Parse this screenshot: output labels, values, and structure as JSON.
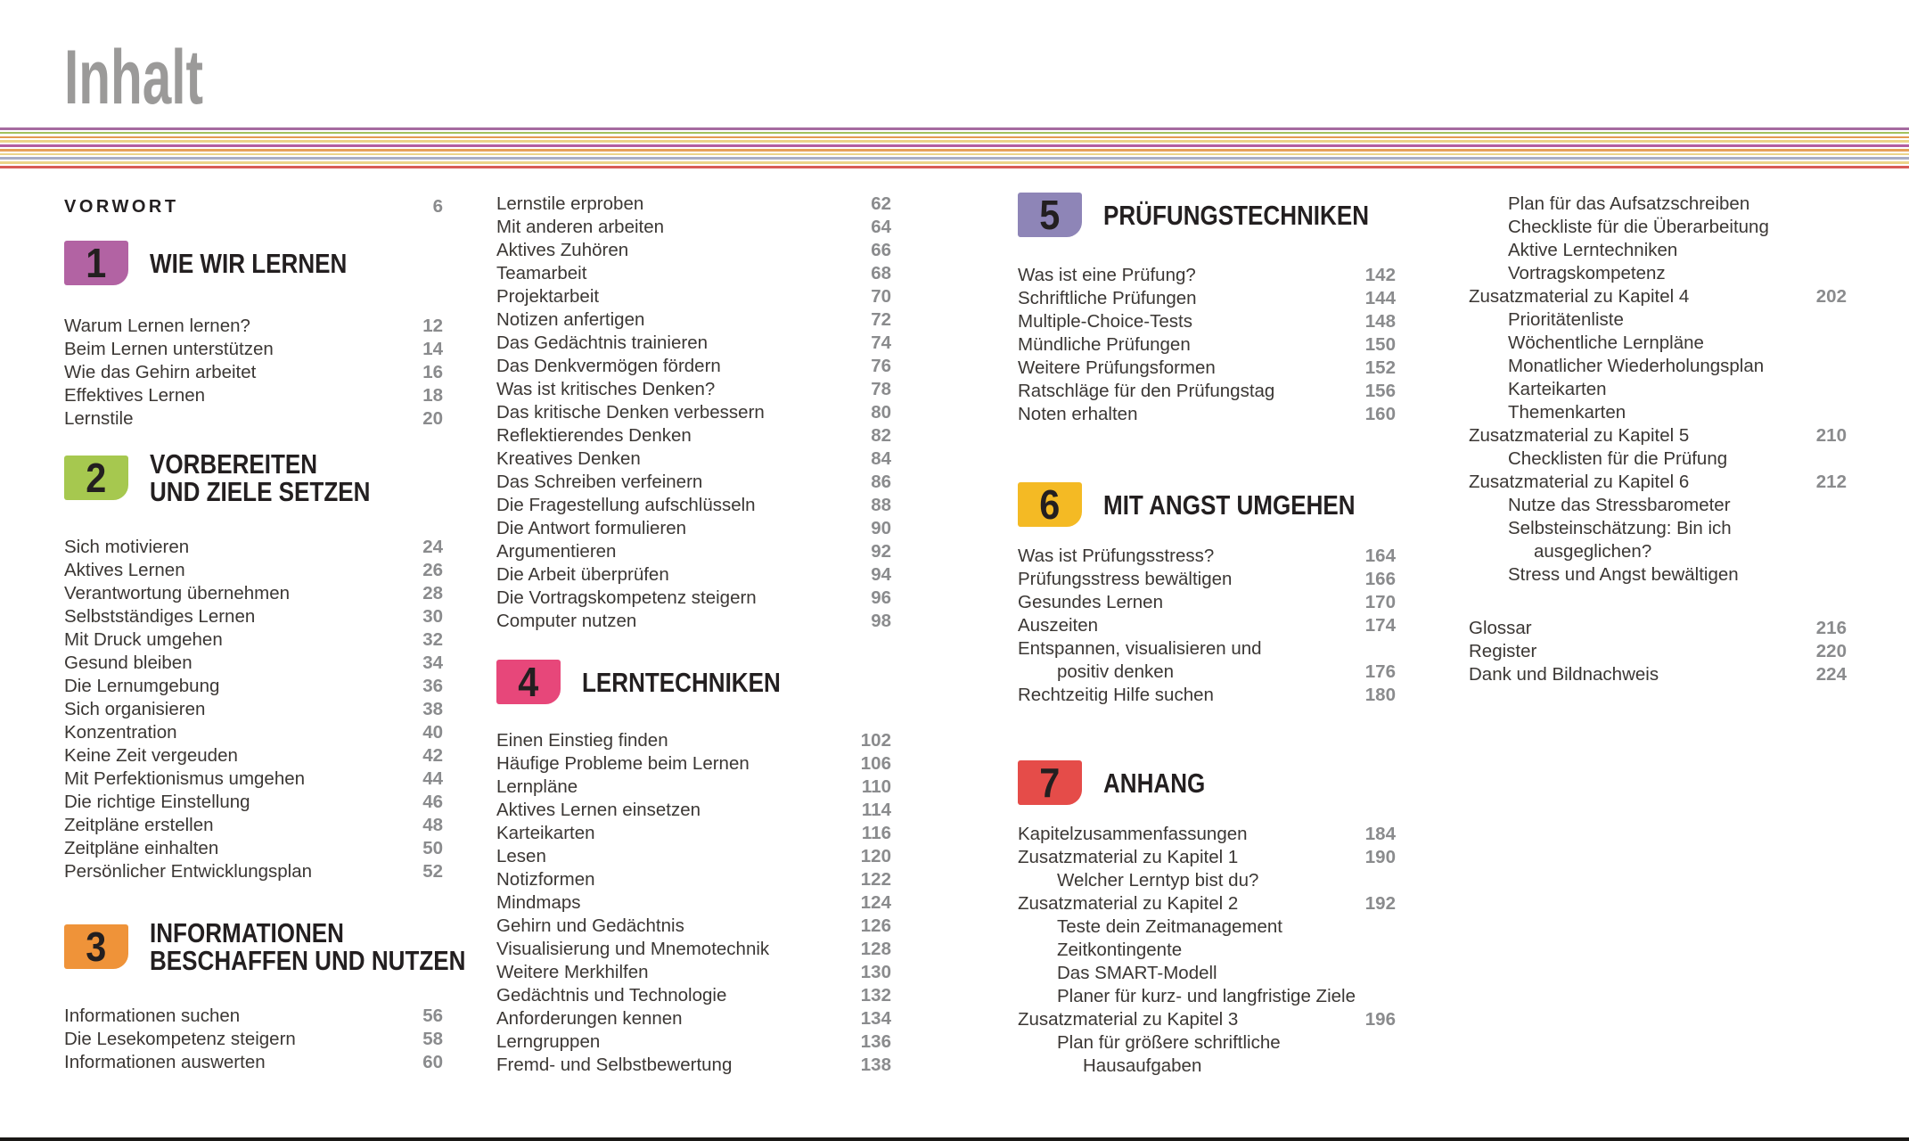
{
  "page": {
    "title": "Inhalt",
    "title_color": "#9b9a99",
    "text_color": "#3b3734",
    "heading_color": "#231f20",
    "page_number_color": "#8a8b8d",
    "stripe_colors": [
      "#a56ba0",
      "#a2c25e",
      "#e39a50",
      "#ecd489",
      "#b25da0",
      "#e5a05a",
      "#ecd489",
      "#a9adc4",
      "#ecd489",
      "#d85c56"
    ]
  },
  "columns": [
    {
      "blocks": [
        {
          "type": "entries",
          "name": "vorwort-entries",
          "variant": "vorwort",
          "entries": [
            {
              "label": "VORWORT",
              "page": "6"
            }
          ]
        },
        {
          "type": "chapter",
          "name": "chapter-1-header",
          "number": "1",
          "badge_color": "#b263a3",
          "title_lines": [
            "WIE WIR LERNEN"
          ]
        },
        {
          "type": "entries",
          "name": "chapter-1-entries",
          "entries": [
            {
              "label": "Warum Lernen lernen?",
              "page": "12"
            },
            {
              "label": "Beim Lernen unterstützen",
              "page": "14"
            },
            {
              "label": "Wie das Gehirn arbeitet",
              "page": "16"
            },
            {
              "label": "Effektives Lernen",
              "page": "18"
            },
            {
              "label": "Lernstile",
              "page": "20"
            }
          ]
        },
        {
          "type": "chapter",
          "name": "chapter-2-header",
          "number": "2",
          "badge_color": "#a6c84f",
          "title_lines": [
            "VORBEREITEN",
            "UND ZIELE SETZEN"
          ]
        },
        {
          "type": "entries",
          "name": "chapter-2-entries",
          "entries": [
            {
              "label": "Sich motivieren",
              "page": "24"
            },
            {
              "label": "Aktives Lernen",
              "page": "26"
            },
            {
              "label": "Verantwortung übernehmen",
              "page": "28"
            },
            {
              "label": "Selbstständiges Lernen",
              "page": "30"
            },
            {
              "label": "Mit Druck umgehen",
              "page": "32"
            },
            {
              "label": "Gesund bleiben",
              "page": "34"
            },
            {
              "label": "Die Lernumgebung",
              "page": "36"
            },
            {
              "label": "Sich organisieren",
              "page": "38"
            },
            {
              "label": "Konzentration",
              "page": "40"
            },
            {
              "label": "Keine Zeit vergeuden",
              "page": "42"
            },
            {
              "label": "Mit Perfektionismus umgehen",
              "page": "44"
            },
            {
              "label": "Die richtige Einstellung",
              "page": "46"
            },
            {
              "label": "Zeitpläne erstellen",
              "page": "48"
            },
            {
              "label": "Zeitpläne einhalten",
              "page": "50"
            },
            {
              "label": "Persönlicher Entwicklungsplan",
              "page": "52"
            }
          ]
        },
        {
          "type": "chapter",
          "name": "chapter-3-header",
          "number": "3",
          "badge_color": "#ef9339",
          "title_lines": [
            "INFORMATIONEN",
            "BESCHAFFEN UND NUTZEN"
          ]
        },
        {
          "type": "entries",
          "name": "chapter-3-entries",
          "entries": [
            {
              "label": "Informationen suchen",
              "page": "56"
            },
            {
              "label": "Die Lesekompetenz steigern",
              "page": "58"
            },
            {
              "label": "Informationen auswerten",
              "page": "60"
            }
          ]
        }
      ]
    },
    {
      "blocks": [
        {
          "type": "entries",
          "name": "chapter-3-continued-entries",
          "entries": [
            {
              "label": "Lernstile erproben",
              "page": "62"
            },
            {
              "label": "Mit anderen arbeiten",
              "page": "64"
            },
            {
              "label": "Aktives Zuhören",
              "page": "66"
            },
            {
              "label": "Teamarbeit",
              "page": "68"
            },
            {
              "label": "Projektarbeit",
              "page": "70"
            },
            {
              "label": "Notizen anfertigen",
              "page": "72"
            },
            {
              "label": "Das Gedächtnis trainieren",
              "page": "74"
            },
            {
              "label": "Das Denkvermögen fördern",
              "page": "76"
            },
            {
              "label": "Was ist kritisches Denken?",
              "page": "78"
            },
            {
              "label": "Das kritische Denken verbessern",
              "page": "80"
            },
            {
              "label": "Reflektierendes Denken",
              "page": "82"
            },
            {
              "label": "Kreatives Denken",
              "page": "84"
            },
            {
              "label": "Das Schreiben verfeinern",
              "page": "86"
            },
            {
              "label": "Die Fragestellung aufschlüsseln",
              "page": "88"
            },
            {
              "label": "Die Antwort formulieren",
              "page": "90"
            },
            {
              "label": "Argumentieren",
              "page": "92"
            },
            {
              "label": "Die Arbeit überprüfen",
              "page": "94"
            },
            {
              "label": "Die Vortragskompetenz steigern",
              "page": "96"
            },
            {
              "label": "Computer nutzen",
              "page": "98"
            }
          ]
        },
        {
          "type": "chapter",
          "name": "chapter-4-header",
          "number": "4",
          "badge_color": "#e7477a",
          "title_lines": [
            "LERNTECHNIKEN"
          ]
        },
        {
          "type": "entries",
          "name": "chapter-4-entries",
          "entries": [
            {
              "label": "Einen Einstieg finden",
              "page": "102"
            },
            {
              "label": "Häufige Probleme beim Lernen",
              "page": "106"
            },
            {
              "label": "Lernpläne",
              "page": "110"
            },
            {
              "label": "Aktives Lernen einsetzen",
              "page": "114"
            },
            {
              "label": "Karteikarten",
              "page": "116"
            },
            {
              "label": "Lesen",
              "page": "120"
            },
            {
              "label": "Notizformen",
              "page": "122"
            },
            {
              "label": "Mindmaps",
              "page": "124"
            },
            {
              "label": "Gehirn und Gedächtnis",
              "page": "126"
            },
            {
              "label": "Visualisierung und Mnemotechnik",
              "page": "128"
            },
            {
              "label": "Weitere Merkhilfen",
              "page": "130"
            },
            {
              "label": "Gedächtnis und Technologie",
              "page": "132"
            },
            {
              "label": "Anforderungen kennen",
              "page": "134"
            },
            {
              "label": "Lerngruppen",
              "page": "136"
            },
            {
              "label": "Fremd- und Selbstbewertung",
              "page": "138"
            }
          ]
        }
      ]
    },
    {
      "blocks": [
        {
          "type": "chapter",
          "name": "chapter-5-header",
          "number": "5",
          "badge_color": "#8e85b7",
          "title_lines": [
            "PRÜFUNGSTECHNIKEN"
          ]
        },
        {
          "type": "entries",
          "name": "chapter-5-entries",
          "entries": [
            {
              "label": "Was ist eine Prüfung?",
              "page": "142"
            },
            {
              "label": "Schriftliche Prüfungen",
              "page": "144"
            },
            {
              "label": "Multiple-Choice-Tests",
              "page": "148"
            },
            {
              "label": "Mündliche Prüfungen",
              "page": "150"
            },
            {
              "label": "Weitere Prüfungsformen",
              "page": "152"
            },
            {
              "label": "Ratschläge für den Prüfungstag",
              "page": "156"
            },
            {
              "label": "Noten erhalten",
              "page": "160"
            }
          ]
        },
        {
          "type": "chapter",
          "name": "chapter-6-header",
          "number": "6",
          "badge_color": "#f4ba24",
          "title_lines": [
            "MIT ANGST UMGEHEN"
          ]
        },
        {
          "type": "entries",
          "name": "chapter-6-entries",
          "entries": [
            {
              "label": "Was ist Prüfungsstress?",
              "page": "164"
            },
            {
              "label": "Prüfungsstress bewältigen",
              "page": "166"
            },
            {
              "label": "Gesundes Lernen",
              "page": "170"
            },
            {
              "label": "Auszeiten",
              "page": "174"
            },
            {
              "label": "Entspannen, visualisieren und"
            },
            {
              "label": "positiv denken",
              "page": "176",
              "indent": 1
            },
            {
              "label": "Rechtzeitig Hilfe suchen",
              "page": "180"
            }
          ]
        },
        {
          "type": "chapter",
          "name": "chapter-7-header",
          "number": "7",
          "badge_color": "#e54c49",
          "title_lines": [
            "ANHANG"
          ]
        },
        {
          "type": "entries",
          "name": "chapter-7-entries",
          "entries": [
            {
              "label": "Kapitelzusammenfassungen",
              "page": "184"
            },
            {
              "label": "Zusatzmaterial zu Kapitel 1",
              "page": "190"
            },
            {
              "label": "Welcher Lerntyp bist du?",
              "indent": 1
            },
            {
              "label": "Zusatzmaterial zu Kapitel 2",
              "page": "192"
            },
            {
              "label": "Teste dein Zeitmanagement",
              "indent": 1
            },
            {
              "label": "Zeitkontingente",
              "indent": 1
            },
            {
              "label": "Das SMART-Modell",
              "indent": 1
            },
            {
              "label": "Planer für kurz- und langfristige Ziele",
              "indent": 1
            },
            {
              "label": "Zusatzmaterial zu Kapitel 3",
              "page": "196"
            },
            {
              "label": "Plan für größere schriftliche",
              "indent": 1
            },
            {
              "label": "Hausaufgaben",
              "indent": 2
            }
          ]
        }
      ]
    },
    {
      "blocks": [
        {
          "type": "entries",
          "name": "chapter-7-continued-entries",
          "entries": [
            {
              "label": "Plan für das Aufsatzschreiben",
              "indent": 1
            },
            {
              "label": "Checkliste für die Überarbeitung",
              "indent": 1
            },
            {
              "label": "Aktive Lerntechniken",
              "indent": 1
            },
            {
              "label": "Vortragskompetenz",
              "indent": 1
            },
            {
              "label": "Zusatzmaterial zu Kapitel 4",
              "page": "202"
            },
            {
              "label": "Prioritätenliste",
              "indent": 1
            },
            {
              "label": "Wöchentliche Lernpläne",
              "indent": 1
            },
            {
              "label": "Monatlicher Wiederholungsplan",
              "indent": 1
            },
            {
              "label": "Karteikarten",
              "indent": 1
            },
            {
              "label": "Themenkarten",
              "indent": 1
            },
            {
              "label": "Zusatzmaterial zu Kapitel 5",
              "page": "210"
            },
            {
              "label": "Checklisten für die Prüfung",
              "indent": 1
            },
            {
              "label": "Zusatzmaterial zu Kapitel 6",
              "page": "212"
            },
            {
              "label": "Nutze das Stressbarometer",
              "indent": 1
            },
            {
              "label": "Selbsteinschätzung: Bin ich",
              "indent": 1
            },
            {
              "label": "ausgeglichen?",
              "indent": 2
            },
            {
              "label": "Stress und Angst bewältigen",
              "indent": 1
            }
          ]
        },
        {
          "type": "entries",
          "name": "backmatter-entries",
          "entries": [
            {
              "label": "Glossar",
              "page": "216"
            },
            {
              "label": "Register",
              "page": "220"
            },
            {
              "label": "Dank und Bildnachweis",
              "page": "224"
            }
          ]
        }
      ]
    }
  ]
}
